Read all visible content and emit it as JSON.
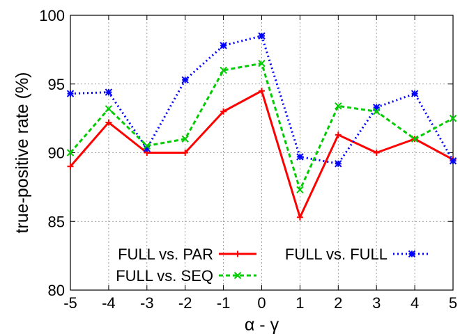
{
  "chart_data": {
    "type": "line",
    "title": "",
    "xlabel": "α - γ",
    "ylabel": "true-positive rate (%)",
    "x": [
      -5,
      -4,
      -3,
      -2,
      -1,
      0,
      1,
      2,
      3,
      4,
      5
    ],
    "xlim": [
      -5,
      5
    ],
    "ylim": [
      80,
      100
    ],
    "xticks": [
      "-5",
      "-4",
      "-3",
      "-2",
      "-1",
      "0",
      "1",
      "2",
      "3",
      "4",
      "5"
    ],
    "yticks": [
      "80",
      "85",
      "90",
      "95",
      "100"
    ],
    "grid": true,
    "legend_position": "bottom-inside",
    "series": [
      {
        "name": "FULL  vs.  PAR",
        "color": "#ff0000",
        "dash": "solid",
        "marker": "plus",
        "values": [
          89.0,
          92.2,
          90.0,
          90.0,
          93.0,
          94.5,
          85.3,
          91.3,
          90.0,
          91.0,
          89.5
        ]
      },
      {
        "name": "FULL  vs.  FULL",
        "color": "#0000ff",
        "dash": "dotted",
        "marker": "star",
        "values": [
          94.3,
          94.4,
          90.3,
          95.3,
          97.8,
          98.5,
          89.7,
          89.2,
          93.3,
          94.3,
          89.4
        ]
      },
      {
        "name": "FULL  vs.  SEQ",
        "color": "#00cc00",
        "dash": "dashed",
        "marker": "cross",
        "values": [
          90.0,
          93.2,
          90.5,
          91.0,
          96.0,
          96.5,
          87.3,
          93.4,
          93.0,
          91.0,
          92.5
        ]
      }
    ]
  }
}
